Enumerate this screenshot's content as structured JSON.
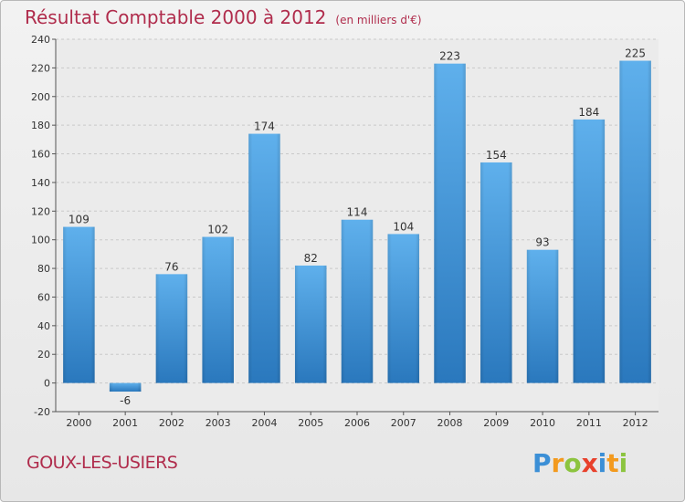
{
  "header": {
    "title": "Résultat Comptable 2000 à 2012",
    "subtitle": "(en milliers d'€)"
  },
  "footer": {
    "place": "GOUX-LES-USIERS",
    "logo_letters": [
      {
        "char": "P",
        "color": "#3b8fd6"
      },
      {
        "char": "r",
        "color": "#f39a1e"
      },
      {
        "char": "o",
        "color": "#8cc43f"
      },
      {
        "char": "x",
        "color": "#e8412c"
      },
      {
        "char": "i",
        "color": "#3b8fd6"
      },
      {
        "char": "t",
        "color": "#f39a1e"
      },
      {
        "char": "i",
        "color": "#8cc43f"
      }
    ]
  },
  "chart_data": {
    "type": "bar",
    "categories": [
      "2000",
      "2001",
      "2002",
      "2003",
      "2004",
      "2005",
      "2006",
      "2007",
      "2008",
      "2009",
      "2010",
      "2011",
      "2012"
    ],
    "values": [
      109,
      -6,
      76,
      102,
      174,
      82,
      114,
      104,
      223,
      154,
      93,
      184,
      225
    ],
    "data_labels": [
      "109",
      "-6",
      "76",
      "102",
      "174",
      "82",
      "114",
      "104",
      "223",
      "154",
      "93",
      "184",
      "225"
    ],
    "ylim": [
      -20,
      240
    ],
    "yticks": [
      -20,
      0,
      20,
      40,
      60,
      80,
      100,
      120,
      140,
      160,
      180,
      200,
      220,
      240
    ],
    "ytick_labels": [
      "-20",
      "0",
      "20",
      "40",
      "60",
      "80",
      "100",
      "120",
      "140",
      "160",
      "180",
      "200",
      "220",
      "240"
    ],
    "grid": true,
    "bar_color": "#3d8fd4"
  }
}
